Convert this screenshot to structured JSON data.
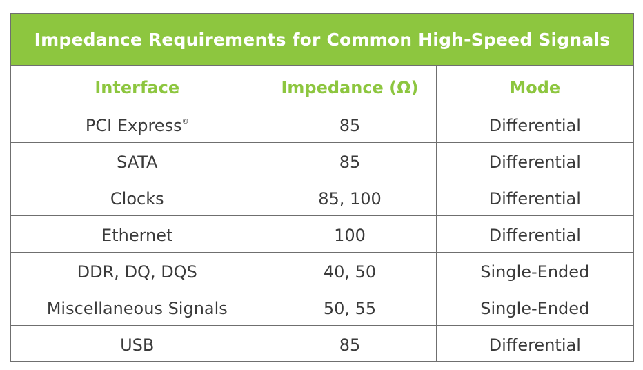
{
  "table": {
    "title": "Impedance Requirements for Common High-Speed Signals",
    "headers": [
      "Interface",
      "Impedance (Ω)",
      "Mode"
    ],
    "rows": [
      {
        "interface": "PCI Express",
        "mark": "®",
        "impedance": "85",
        "mode": "Differential"
      },
      {
        "interface": "SATA",
        "impedance": "85",
        "mode": "Differential"
      },
      {
        "interface": "Clocks",
        "impedance": "85, 100",
        "mode": "Differential"
      },
      {
        "interface": "Ethernet",
        "impedance": "100",
        "mode": "Differential"
      },
      {
        "interface": "DDR, DQ, DQS",
        "impedance": "40, 50",
        "mode": "Single-Ended"
      },
      {
        "interface": "Miscellaneous Signals",
        "impedance": "50, 55",
        "mode": "Single-Ended"
      },
      {
        "interface": "USB",
        "impedance": "85",
        "mode": "Differential"
      }
    ]
  },
  "colors": {
    "accent": "#8dc63f",
    "text": "#3a3a3a",
    "border": "#6f6f6f"
  }
}
